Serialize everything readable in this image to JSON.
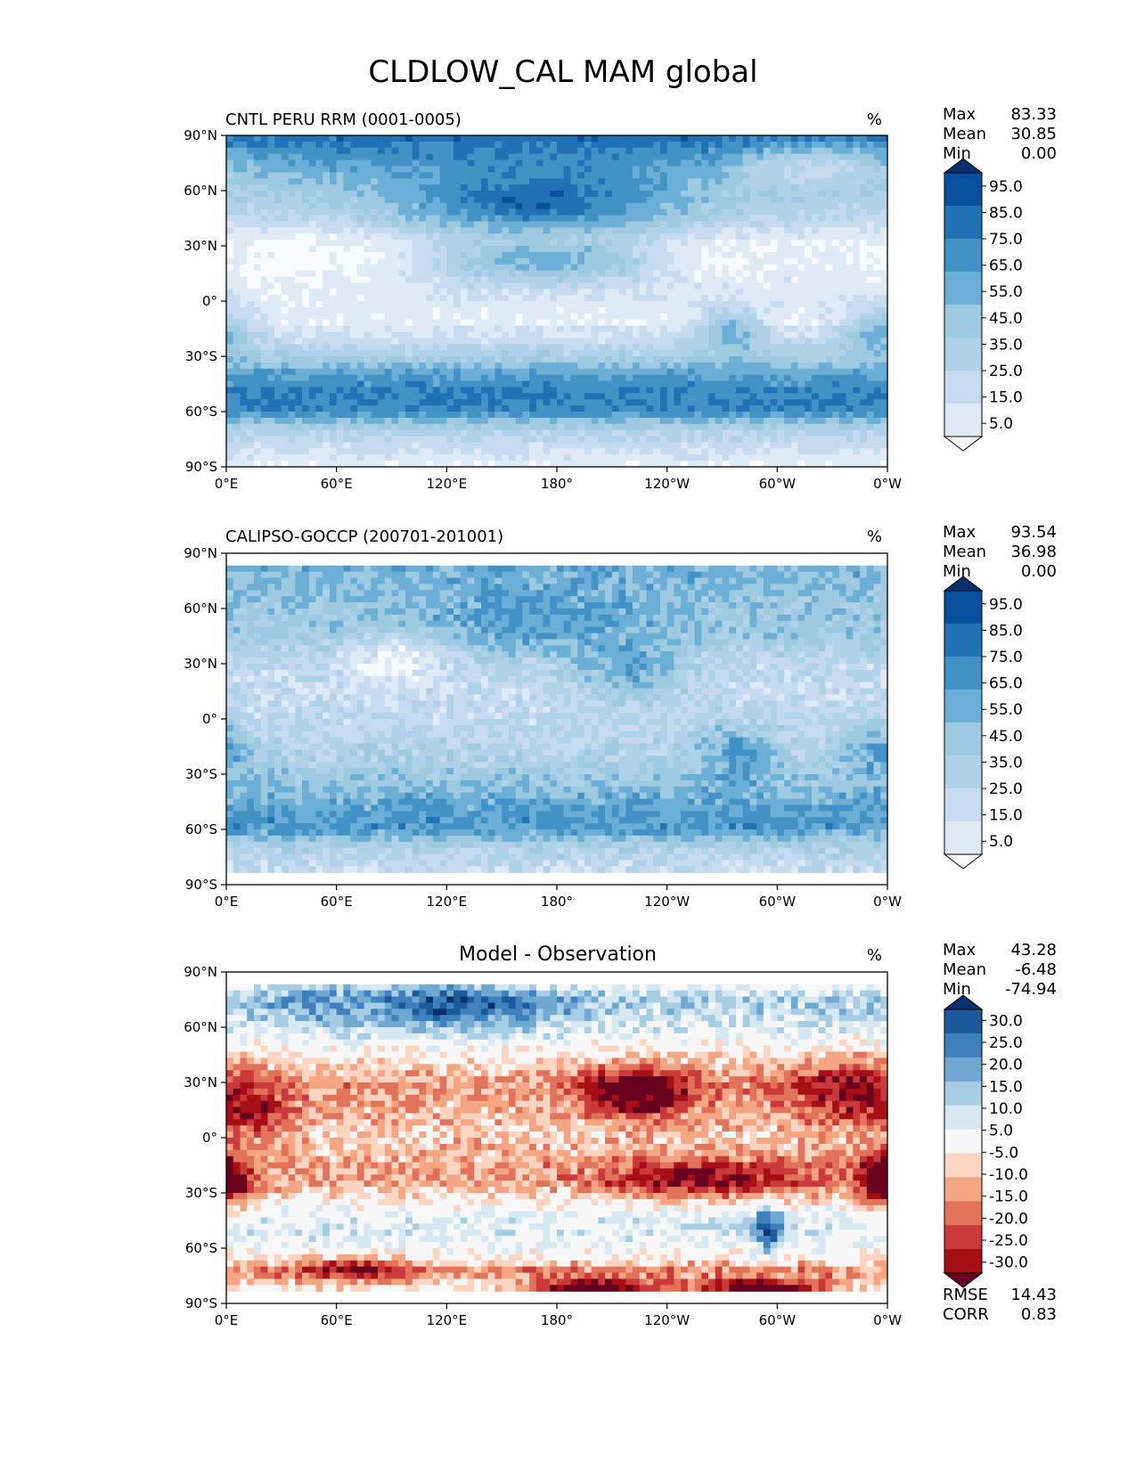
{
  "figure": {
    "title": "CLDLOW_CAL MAM global",
    "colors": {
      "blues": [
        "#f7fbff",
        "#deebf7",
        "#c6dbef",
        "#b0d2e8",
        "#9ecae1",
        "#6baed6",
        "#4292c6",
        "#2171b5",
        "#08519c",
        "#08306b"
      ],
      "rdbu": [
        "#67001f",
        "#a50f15",
        "#cb3a3a",
        "#e0735a",
        "#f4a582",
        "#fbd5c1",
        "#f7f7f7",
        "#d6e8f2",
        "#a6cde3",
        "#6fa8d0",
        "#3f81bd",
        "#1c5a9c",
        "#08306b"
      ]
    }
  },
  "chart_data": [
    {
      "type": "heatmap",
      "name": "model",
      "title": "CNTL PERU RRM (0001-0005)",
      "units": "%",
      "stats": [
        {
          "label": "Max",
          "value": "83.33"
        },
        {
          "label": "Mean",
          "value": "30.85"
        },
        {
          "label": "Min",
          "value": "0.00"
        }
      ],
      "colorbar": {
        "levels": [
          "95.0",
          "85.0",
          "75.0",
          "65.0",
          "55.0",
          "45.0",
          "35.0",
          "25.0",
          "15.0",
          "5.0"
        ],
        "extend": "both"
      },
      "xticks": [
        "0°E",
        "60°E",
        "120°E",
        "180°",
        "120°W",
        "60°W",
        "0°W"
      ],
      "yticks": [
        "90°N",
        "60°N",
        "30°N",
        "0°",
        "30°S",
        "60°S",
        "90°S"
      ],
      "xlim": [
        0,
        360
      ],
      "ylim": [
        -90,
        90
      ],
      "lat_profile": [
        [
          88,
          75
        ],
        [
          75,
          60
        ],
        [
          60,
          40
        ],
        [
          45,
          28
        ],
        [
          30,
          8
        ],
        [
          15,
          15
        ],
        [
          0,
          15
        ],
        [
          -10,
          12
        ],
        [
          -20,
          22
        ],
        [
          -30,
          38
        ],
        [
          -40,
          60
        ],
        [
          -50,
          70
        ],
        [
          -60,
          68
        ],
        [
          -70,
          35
        ],
        [
          -90,
          10
        ]
      ],
      "features": [
        {
          "lon": 170,
          "lat": 55,
          "w": 55,
          "h": 14,
          "v": 78
        },
        {
          "lon": 175,
          "lat": 22,
          "w": 45,
          "h": 10,
          "v": 55
        },
        {
          "lon": 270,
          "lat": 20,
          "w": 20,
          "h": 8,
          "v": 8
        },
        {
          "lon": 275,
          "lat": -18,
          "w": 12,
          "h": 10,
          "v": 55
        },
        {
          "lon": 355,
          "lat": -18,
          "w": 14,
          "h": 10,
          "v": 55
        },
        {
          "lon": 45,
          "lat": 22,
          "w": 30,
          "h": 10,
          "v": 4
        },
        {
          "lon": 320,
          "lat": 72,
          "w": 30,
          "h": 8,
          "v": 25
        }
      ]
    },
    {
      "type": "heatmap",
      "name": "observation",
      "title": "CALIPSO-GOCCP (200701-201001)",
      "units": "%",
      "stats": [
        {
          "label": "Max",
          "value": "93.54"
        },
        {
          "label": "Mean",
          "value": "36.98"
        },
        {
          "label": "Min",
          "value": "0.00"
        }
      ],
      "colorbar": {
        "levels": [
          "95.0",
          "85.0",
          "75.0",
          "65.0",
          "55.0",
          "45.0",
          "35.0",
          "25.0",
          "15.0",
          "5.0"
        ],
        "extend": "both"
      },
      "xticks": [
        "0°E",
        "60°E",
        "120°E",
        "180°",
        "120°W",
        "60°W",
        "0°W"
      ],
      "yticks": [
        "90°N",
        "60°N",
        "30°N",
        "0°",
        "30°S",
        "60°S",
        "90°S"
      ],
      "xlim": [
        0,
        360
      ],
      "ylim": [
        -90,
        90
      ],
      "lat_profile": [
        [
          82,
          55
        ],
        [
          75,
          50
        ],
        [
          60,
          45
        ],
        [
          45,
          42
        ],
        [
          30,
          28
        ],
        [
          15,
          25
        ],
        [
          0,
          28
        ],
        [
          -10,
          30
        ],
        [
          -20,
          35
        ],
        [
          -30,
          42
        ],
        [
          -40,
          52
        ],
        [
          -50,
          60
        ],
        [
          -60,
          62
        ],
        [
          -70,
          35
        ],
        [
          -82,
          25
        ]
      ],
      "features": [
        {
          "lon": 170,
          "lat": 55,
          "w": 45,
          "h": 14,
          "v": 62
        },
        {
          "lon": 220,
          "lat": 30,
          "w": 22,
          "h": 14,
          "v": 58
        },
        {
          "lon": 278,
          "lat": -20,
          "w": 14,
          "h": 12,
          "v": 62
        },
        {
          "lon": 355,
          "lat": -18,
          "w": 14,
          "h": 10,
          "v": 60
        },
        {
          "lon": 90,
          "lat": 30,
          "w": 18,
          "h": 10,
          "v": 8
        }
      ]
    },
    {
      "type": "heatmap",
      "name": "difference",
      "title": "Model - Observation",
      "units": "%",
      "stats": [
        {
          "label": "Max",
          "value": "43.28"
        },
        {
          "label": "Mean",
          "value": "-6.48"
        },
        {
          "label": "Min",
          "value": "-74.94"
        }
      ],
      "colorbar": {
        "levels": [
          "30.0",
          "25.0",
          "20.0",
          "15.0",
          "10.0",
          "5.0",
          "-5.0",
          "-10.0",
          "-15.0",
          "-20.0",
          "-25.0",
          "-30.0"
        ],
        "extend": "both"
      },
      "metrics": [
        {
          "label": "RMSE",
          "value": "14.43"
        },
        {
          "label": "CORR",
          "value": "0.83"
        }
      ],
      "xticks": [
        "0°E",
        "60°E",
        "120°E",
        "180°",
        "120°W",
        "60°W",
        "0°W"
      ],
      "yticks": [
        "90°N",
        "60°N",
        "30°N",
        "0°",
        "30°S",
        "60°S",
        "90°S"
      ],
      "xlim": [
        0,
        360
      ],
      "ylim": [
        -90,
        90
      ],
      "lat_profile": [
        [
          82,
          2
        ],
        [
          75,
          12
        ],
        [
          65,
          8
        ],
        [
          50,
          0
        ],
        [
          40,
          -6
        ],
        [
          30,
          -14
        ],
        [
          15,
          -10
        ],
        [
          0,
          -8
        ],
        [
          -15,
          -12
        ],
        [
          -25,
          -12
        ],
        [
          -35,
          -2
        ],
        [
          -45,
          6
        ],
        [
          -55,
          4
        ],
        [
          -65,
          -2
        ],
        [
          -72,
          -15
        ],
        [
          -82,
          -2
        ]
      ],
      "features": [
        {
          "lon": 225,
          "lat": 25,
          "w": 22,
          "h": 10,
          "v": -38
        },
        {
          "lon": 260,
          "lat": -22,
          "w": 40,
          "h": 7,
          "v": -30
        },
        {
          "lon": 358,
          "lat": -22,
          "w": 10,
          "h": 10,
          "v": -45
        },
        {
          "lon": 340,
          "lat": 25,
          "w": 25,
          "h": 12,
          "v": -30
        },
        {
          "lon": 125,
          "lat": 72,
          "w": 40,
          "h": 9,
          "v": 28
        },
        {
          "lon": 60,
          "lat": 72,
          "w": 30,
          "h": 8,
          "v": 18
        },
        {
          "lon": 15,
          "lat": 15,
          "w": 14,
          "h": 10,
          "v": -28
        },
        {
          "lon": 200,
          "lat": -82,
          "w": 25,
          "h": 4,
          "v": -40
        },
        {
          "lon": 290,
          "lat": -82,
          "w": 30,
          "h": 4,
          "v": -35
        },
        {
          "lon": 70,
          "lat": -72,
          "w": 25,
          "h": 4,
          "v": -30
        },
        {
          "lon": 295,
          "lat": -50,
          "w": 5,
          "h": 8,
          "v": 30
        }
      ]
    }
  ]
}
